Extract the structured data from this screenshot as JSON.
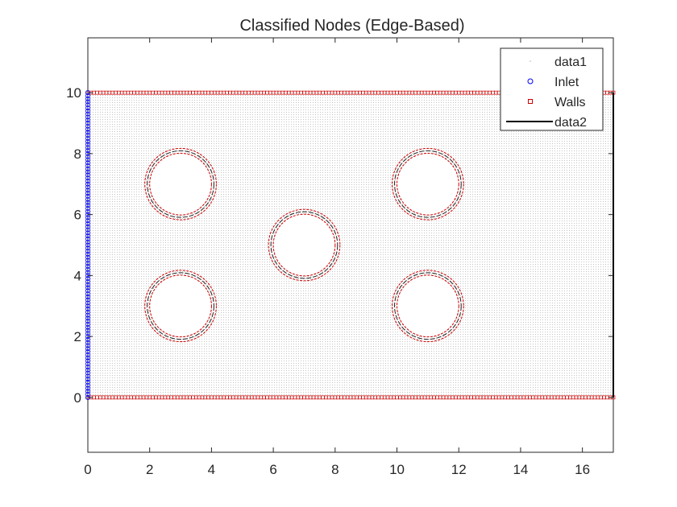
{
  "chart_data": {
    "type": "scatter",
    "title": "Classified Nodes (Edge-Based)",
    "xlabel": "",
    "ylabel": "",
    "xlim": [
      0,
      17
    ],
    "ylim": [
      -1.8,
      11.8
    ],
    "x_ticks": [
      "0",
      "2",
      "4",
      "6",
      "8",
      "10",
      "12",
      "14",
      "16"
    ],
    "y_ticks": [
      "0",
      "2",
      "4",
      "6",
      "8",
      "10"
    ],
    "domain": {
      "x": [
        0,
        17
      ],
      "y": [
        0,
        10
      ]
    },
    "obstacles": [
      {
        "cx": 3,
        "cy": 7,
        "r": 1
      },
      {
        "cx": 11,
        "cy": 7,
        "r": 1
      },
      {
        "cx": 7,
        "cy": 5,
        "r": 1
      },
      {
        "cx": 3,
        "cy": 3,
        "r": 1
      },
      {
        "cx": 11,
        "cy": 3,
        "r": 1
      }
    ],
    "legend_position": "top-right",
    "series": [
      {
        "name": "data1",
        "marker": "point",
        "color": "#b4b4b4",
        "description": "interior nodes"
      },
      {
        "name": "Inlet",
        "marker": "circle",
        "color": "#0000ff",
        "x": 0,
        "y_range": [
          0,
          10
        ]
      },
      {
        "name": "Walls",
        "marker": "square",
        "color": "#cc0000",
        "segments": "y=0 and y=10 for x in [0,17], obstacle boundaries"
      },
      {
        "name": "data2",
        "marker": "line",
        "color": "#000000",
        "x": 17,
        "y_range": [
          0,
          10
        ]
      }
    ],
    "grid": false
  }
}
